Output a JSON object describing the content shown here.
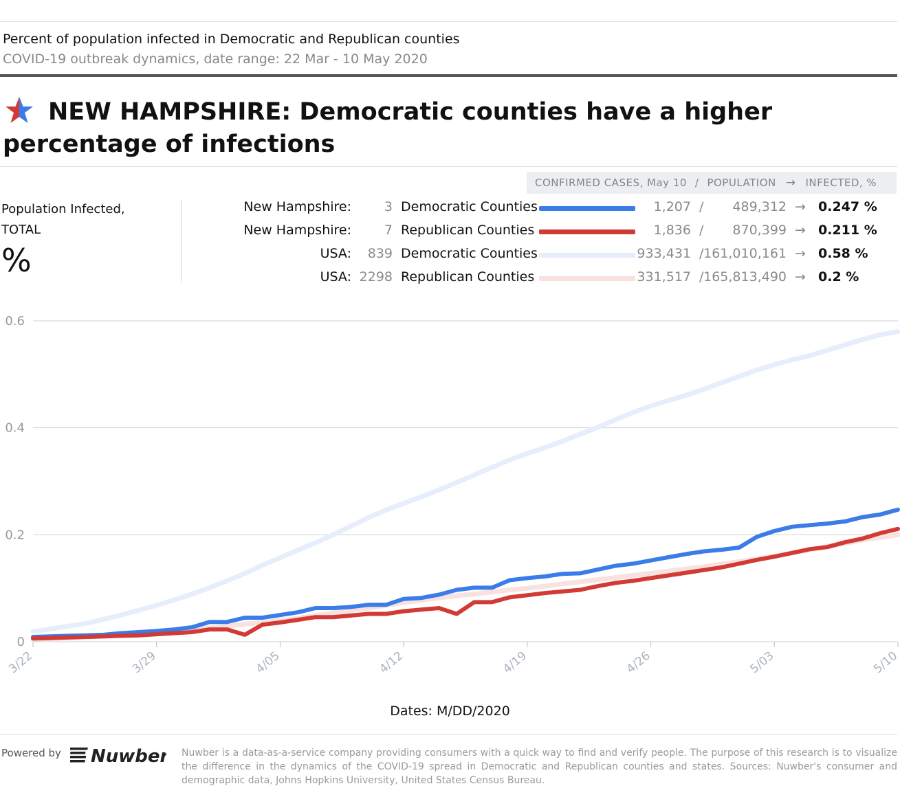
{
  "header": {
    "subtitle_line1": "Percent of population infected in Democratic and Republican counties",
    "subtitle_line2": "COVID-19 outbreak dynamics, date range: 22 Mar - 10 May 2020",
    "headline": "NEW HAMPSHIRE: Democratic counties have a higher percentage of infections"
  },
  "legend": {
    "header_cases": "CONFIRMED CASES, May 10",
    "header_slash": "/",
    "header_population": "POPULATION",
    "header_arrow": "→",
    "header_infected": "INFECTED, %",
    "rows": [
      {
        "region": "New Hampshire:",
        "count": "3",
        "party": "Democratic Counties",
        "cases": "1,207",
        "slash": "/",
        "population": "489,312",
        "arrow": "→",
        "infected": "0.247 %",
        "color": "#3a7ce8"
      },
      {
        "region": "New Hampshire:",
        "count": "7",
        "party": "Republican Counties",
        "cases": "1,836",
        "slash": "/",
        "population": "870,399",
        "arrow": "→",
        "infected": "0.211 %",
        "color": "#d23a35"
      },
      {
        "region": "USA:",
        "count": "839",
        "party": "Democratic Counties",
        "cases": "933,431",
        "slash": "/",
        "population": "161,010,161",
        "arrow": "→",
        "infected": "0.58 %",
        "color": "#e6edfb"
      },
      {
        "region": "USA:",
        "count": "2298",
        "party": "Republican Counties",
        "cases": "331,517",
        "slash": "/",
        "population": "165,813,490",
        "arrow": "→",
        "infected": "0.2 %",
        "color": "#f8e1de"
      }
    ]
  },
  "side_panel": {
    "label_line1": "Population Infected,",
    "label_line2": "TOTAL",
    "unit": "%"
  },
  "chart_data": {
    "type": "line",
    "title": "Percent of population infected in Democratic and Republican counties",
    "xlabel": "Dates: M/DD/2020",
    "ylabel": "",
    "ylim": [
      0,
      0.6
    ],
    "yticks": [
      0,
      0.2,
      0.4,
      0.6
    ],
    "ytick_labels": [
      "0",
      "0.2",
      "0.4",
      "0.6"
    ],
    "xtick_labels": [
      "3/22",
      "3/29",
      "4/05",
      "4/12",
      "4/19",
      "4/26",
      "5/03",
      "5/10"
    ],
    "xtick_days": [
      0,
      7,
      14,
      21,
      28,
      35,
      42,
      49
    ],
    "x_days": [
      0,
      1,
      2,
      3,
      4,
      5,
      6,
      7,
      8,
      9,
      10,
      11,
      12,
      13,
      14,
      15,
      16,
      17,
      18,
      19,
      20,
      21,
      22,
      23,
      24,
      25,
      26,
      27,
      28,
      29,
      30,
      31,
      32,
      33,
      34,
      35,
      36,
      37,
      38,
      39,
      40,
      41,
      42,
      43,
      44,
      45,
      46,
      47,
      48,
      49
    ],
    "series": [
      {
        "name": "USA: Democratic Counties",
        "color": "#e6edfb",
        "width": 7,
        "values": [
          0.019,
          0.024,
          0.029,
          0.034,
          0.042,
          0.05,
          0.059,
          0.068,
          0.078,
          0.089,
          0.101,
          0.114,
          0.128,
          0.143,
          0.157,
          0.171,
          0.185,
          0.2,
          0.216,
          0.232,
          0.246,
          0.259,
          0.271,
          0.284,
          0.298,
          0.312,
          0.326,
          0.34,
          0.352,
          0.363,
          0.375,
          0.388,
          0.401,
          0.415,
          0.429,
          0.441,
          0.451,
          0.461,
          0.472,
          0.484,
          0.496,
          0.508,
          0.518,
          0.527,
          0.535,
          0.545,
          0.555,
          0.565,
          0.574,
          0.58
        ]
      },
      {
        "name": "USA: Republican Counties",
        "color": "#f8e1de",
        "width": 7,
        "values": [
          0.005,
          0.006,
          0.007,
          0.009,
          0.011,
          0.013,
          0.015,
          0.017,
          0.02,
          0.023,
          0.026,
          0.029,
          0.033,
          0.036,
          0.04,
          0.044,
          0.049,
          0.054,
          0.058,
          0.063,
          0.068,
          0.073,
          0.078,
          0.082,
          0.086,
          0.089,
          0.093,
          0.097,
          0.1,
          0.104,
          0.108,
          0.112,
          0.116,
          0.12,
          0.124,
          0.128,
          0.132,
          0.136,
          0.14,
          0.145,
          0.15,
          0.155,
          0.16,
          0.166,
          0.172,
          0.178,
          0.184,
          0.19,
          0.195,
          0.2
        ]
      },
      {
        "name": "New Hampshire: Democratic Counties",
        "color": "#3a7ce8",
        "width": 6,
        "values": [
          0.009,
          0.01,
          0.011,
          0.012,
          0.013,
          0.016,
          0.018,
          0.02,
          0.023,
          0.027,
          0.037,
          0.037,
          0.045,
          0.045,
          0.05,
          0.055,
          0.063,
          0.063,
          0.065,
          0.069,
          0.069,
          0.08,
          0.082,
          0.088,
          0.097,
          0.101,
          0.101,
          0.115,
          0.119,
          0.122,
          0.127,
          0.128,
          0.135,
          0.142,
          0.146,
          0.152,
          0.158,
          0.164,
          0.169,
          0.172,
          0.176,
          0.196,
          0.207,
          0.215,
          0.218,
          0.221,
          0.225,
          0.233,
          0.238,
          0.247
        ]
      },
      {
        "name": "New Hampshire: Republican Counties",
        "color": "#d23a35",
        "width": 6,
        "values": [
          0.006,
          0.007,
          0.008,
          0.009,
          0.01,
          0.011,
          0.012,
          0.014,
          0.016,
          0.018,
          0.023,
          0.023,
          0.013,
          0.032,
          0.036,
          0.041,
          0.046,
          0.046,
          0.049,
          0.052,
          0.052,
          0.057,
          0.06,
          0.063,
          0.052,
          0.074,
          0.074,
          0.083,
          0.087,
          0.091,
          0.094,
          0.097,
          0.104,
          0.11,
          0.114,
          0.119,
          0.124,
          0.129,
          0.134,
          0.139,
          0.146,
          0.153,
          0.159,
          0.166,
          0.173,
          0.177,
          0.186,
          0.193,
          0.203,
          0.211
        ]
      }
    ]
  },
  "footer": {
    "powered_by": "Powered by",
    "logo_text": "Nuwber",
    "note": "Nuwber is a data-as-a-service company providing consumers with a quick way to find and verify people. The purpose of this research is to visualize the difference in the dynamics of the COVID-19 spread in Democratic and Republican counties and states. Sources: Nuwber's consumer and demographic data, Johns Hopkins University, United States Census Bureau."
  }
}
